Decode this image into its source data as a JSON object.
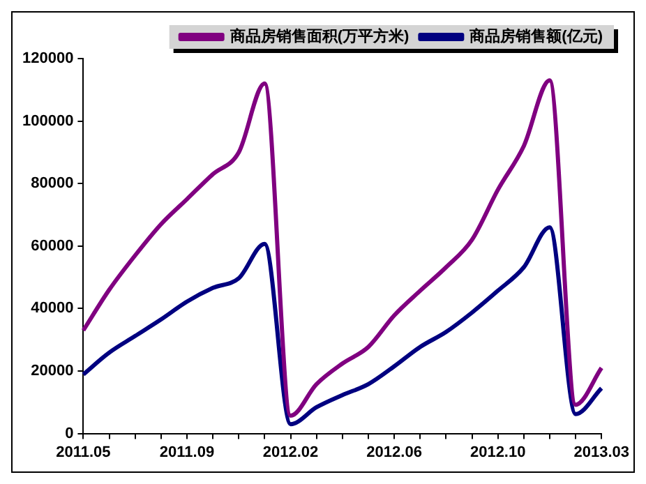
{
  "chart_data": {
    "type": "line",
    "categories": [
      "2011.05",
      null,
      null,
      null,
      "2011.09",
      null,
      null,
      null,
      "2012.02",
      null,
      null,
      null,
      "2012.06",
      null,
      null,
      null,
      "2012.10",
      null,
      null,
      null,
      "2013.03"
    ],
    "series": [
      {
        "name": "商品房销售面积(万平方米)",
        "color": "#800080",
        "values": [
          33000,
          46000,
          57000,
          67000,
          75000,
          83000,
          90000,
          112000,
          5700,
          15800,
          22400,
          27700,
          37800,
          45700,
          53200,
          62000,
          78000,
          92000,
          113000,
          9200,
          21000
        ]
      },
      {
        "name": "商品房销售额(亿元)",
        "color": "#000080",
        "values": [
          18900,
          25900,
          31200,
          36500,
          42200,
          46600,
          49700,
          60700,
          3000,
          8400,
          12300,
          15800,
          21500,
          27700,
          32500,
          38700,
          45700,
          53200,
          66000,
          6200,
          14500
        ]
      }
    ],
    "ylim": [
      0,
      120000
    ],
    "yticks": [
      0,
      20000,
      40000,
      60000,
      80000,
      100000,
      120000
    ],
    "grid": false,
    "legend": "top right",
    "marker": "none",
    "line_style": "solid"
  }
}
